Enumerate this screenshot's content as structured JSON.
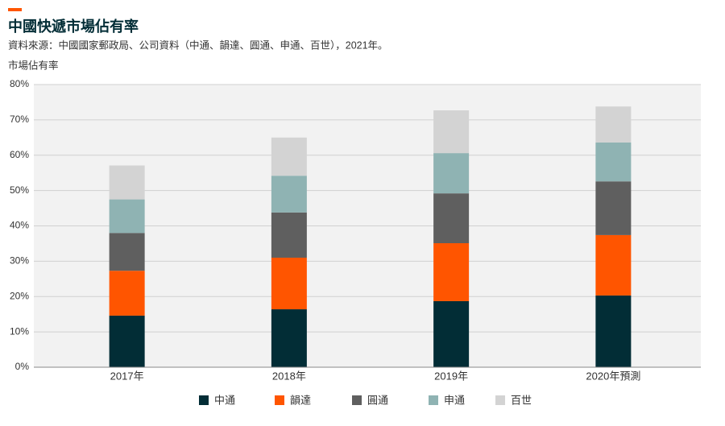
{
  "chart_data": {
    "type": "stacked_bar",
    "title": "中國快遞市場佔有率",
    "subtitle": "資料來源：中國國家郵政局、公司資料（中通、韻達、圓通、申通、百世），2021年。",
    "y_label": "市場佔有率",
    "categories": [
      "2017年",
      "2018年",
      "2019年",
      "2020年預測"
    ],
    "series": [
      {
        "name": "中通",
        "color": "#022d36",
        "values": [
          14.6,
          16.4,
          18.7,
          20.3
        ]
      },
      {
        "name": "韻達",
        "color": "#ff5500",
        "values": [
          12.7,
          14.6,
          16.4,
          17.1
        ]
      },
      {
        "name": "圓通",
        "color": "#5f5f5f",
        "values": [
          10.7,
          12.8,
          14.1,
          15.2
        ]
      },
      {
        "name": "申通",
        "color": "#8fb3b3",
        "values": [
          9.5,
          10.4,
          11.4,
          11.0
        ]
      },
      {
        "name": "百世",
        "color": "#d3d3d3",
        "values": [
          9.6,
          10.8,
          12.1,
          10.2
        ]
      }
    ],
    "ylim": [
      0,
      80
    ],
    "yticks": [
      {
        "value": 0,
        "label": "0%"
      },
      {
        "value": 10,
        "label": "10%"
      },
      {
        "value": 20,
        "label": "20%"
      },
      {
        "value": 30,
        "label": "30%"
      },
      {
        "value": 40,
        "label": "40%"
      },
      {
        "value": 50,
        "label": "50%"
      },
      {
        "value": 60,
        "label": "60%"
      },
      {
        "value": 70,
        "label": "70%"
      },
      {
        "value": 80,
        "label": "80%"
      }
    ],
    "grid": true
  }
}
